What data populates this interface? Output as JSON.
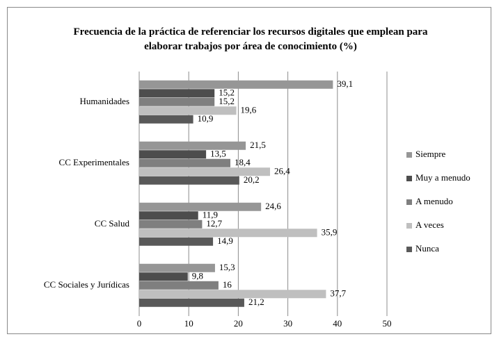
{
  "chart_data": {
    "type": "barh",
    "title": "Frecuencia de la práctica de referenciar los recursos digitales que emplean para elaborar trabajos por área de conocimiento (%)",
    "categories": [
      "Humanidades",
      "CC Experimentales",
      "CC Salud",
      "CC Sociales y Jurídicas"
    ],
    "series": [
      {
        "name": "Siempre",
        "color": "#969696",
        "values": [
          39.1,
          21.5,
          24.6,
          15.3
        ],
        "value_labels": [
          "39,1",
          "21,5",
          "24,6",
          "15,3"
        ]
      },
      {
        "name": "Muy a menudo",
        "color": "#4d4d4d",
        "values": [
          15.2,
          13.5,
          11.9,
          9.8
        ],
        "value_labels": [
          "15,2",
          "13,5",
          "11,9",
          "9,8"
        ]
      },
      {
        "name": "A menudo",
        "color": "#7f7f7f",
        "values": [
          15.2,
          18.4,
          12.7,
          16
        ],
        "value_labels": [
          "15,2",
          "18,4",
          "12,7",
          "16"
        ]
      },
      {
        "name": "A veces",
        "color": "#bfbfbf",
        "values": [
          19.6,
          26.4,
          35.9,
          37.7
        ],
        "value_labels": [
          "19,6",
          "26,4",
          "35,9",
          "37,7"
        ]
      },
      {
        "name": "Nunca",
        "color": "#595959",
        "values": [
          10.9,
          20.2,
          14.9,
          21.2
        ],
        "value_labels": [
          "10,9",
          "20,2",
          "14,9",
          "21,2"
        ]
      }
    ],
    "xlim": [
      0,
      50
    ],
    "xticks": [
      0,
      10,
      20,
      30,
      40,
      50
    ],
    "grid": true,
    "legend": "right"
  }
}
